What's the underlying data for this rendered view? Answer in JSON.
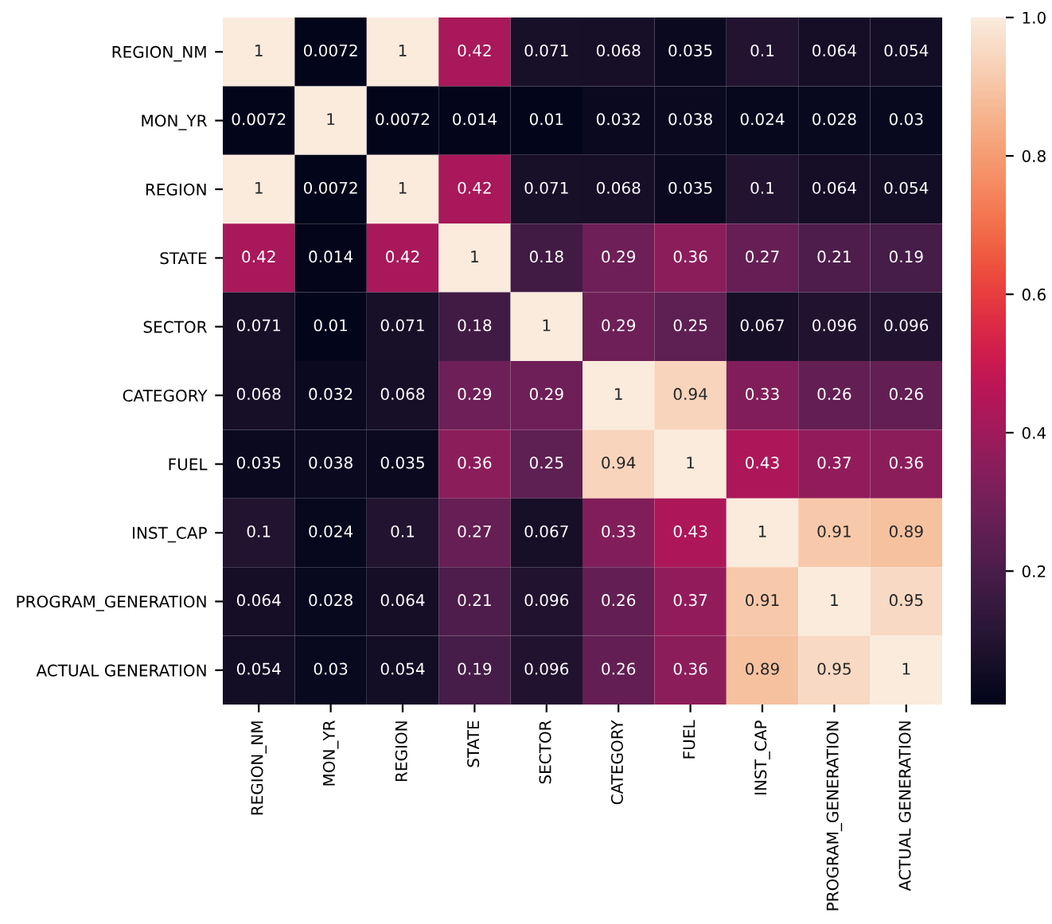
{
  "chart_data": {
    "type": "heatmap",
    "categories": [
      "REGION_NM",
      "MON_YR",
      "REGION",
      "STATE",
      "SECTOR",
      "CATEGORY",
      "FUEL",
      "INST_CAP",
      "PROGRAM_GENERATION",
      "ACTUAL GENERATION"
    ],
    "y_categories": [
      "REGION_NM",
      "MON_YR",
      "REGION",
      "STATE",
      "SECTOR",
      "CATEGORY",
      "FUEL",
      "INST_CAP",
      "PROGRAM_GENERATION",
      "ACTUAL GENERATION"
    ],
    "cells": [
      [
        1,
        0.0072,
        1,
        0.42,
        0.071,
        0.068,
        0.035,
        0.1,
        0.064,
        0.054
      ],
      [
        0.0072,
        1,
        0.0072,
        0.014,
        0.01,
        0.032,
        0.038,
        0.024,
        0.028,
        0.03
      ],
      [
        1,
        0.0072,
        1,
        0.42,
        0.071,
        0.068,
        0.035,
        0.1,
        0.064,
        0.054
      ],
      [
        0.42,
        0.014,
        0.42,
        1,
        0.18,
        0.29,
        0.36,
        0.27,
        0.21,
        0.19
      ],
      [
        0.071,
        0.01,
        0.071,
        0.18,
        1,
        0.29,
        0.25,
        0.067,
        0.096,
        0.096
      ],
      [
        0.068,
        0.032,
        0.068,
        0.29,
        0.29,
        1,
        0.94,
        0.33,
        0.26,
        0.26
      ],
      [
        0.035,
        0.038,
        0.035,
        0.36,
        0.25,
        0.94,
        1,
        0.43,
        0.37,
        0.36
      ],
      [
        0.1,
        0.024,
        0.1,
        0.27,
        0.067,
        0.33,
        0.43,
        1,
        0.91,
        0.89
      ],
      [
        0.064,
        0.028,
        0.064,
        0.21,
        0.096,
        0.26,
        0.37,
        0.91,
        1,
        0.95
      ],
      [
        0.054,
        0.03,
        0.054,
        0.19,
        0.096,
        0.26,
        0.36,
        0.89,
        0.95,
        1
      ]
    ],
    "clim": [
      0.0072,
      1
    ],
    "cticks": [
      0.2,
      0.4,
      0.6,
      0.8,
      {
        "value": 1,
        "label": "1.0"
      }
    ],
    "data_labels": true
  }
}
